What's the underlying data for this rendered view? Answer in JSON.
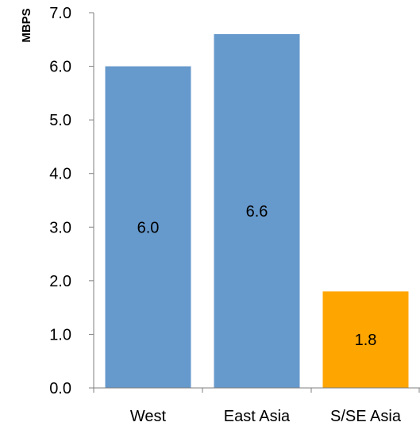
{
  "chart_data": {
    "type": "bar",
    "title": "",
    "xlabel": "",
    "ylabel": "MBPS",
    "ylim": [
      0,
      7
    ],
    "yticks": [
      "0.0",
      "1.0",
      "2.0",
      "3.0",
      "4.0",
      "5.0",
      "6.0",
      "7.0"
    ],
    "grid": false,
    "legend": "none",
    "categories": [
      "West",
      "East Asia",
      "S/SE Asia"
    ],
    "values": [
      6.0,
      6.6,
      1.8
    ],
    "data_labels": [
      "6.0",
      "6.6",
      "1.8"
    ],
    "colors": [
      "#6699cc",
      "#6699cc",
      "#ffa500"
    ],
    "axis_color": "#7f7f7f"
  }
}
